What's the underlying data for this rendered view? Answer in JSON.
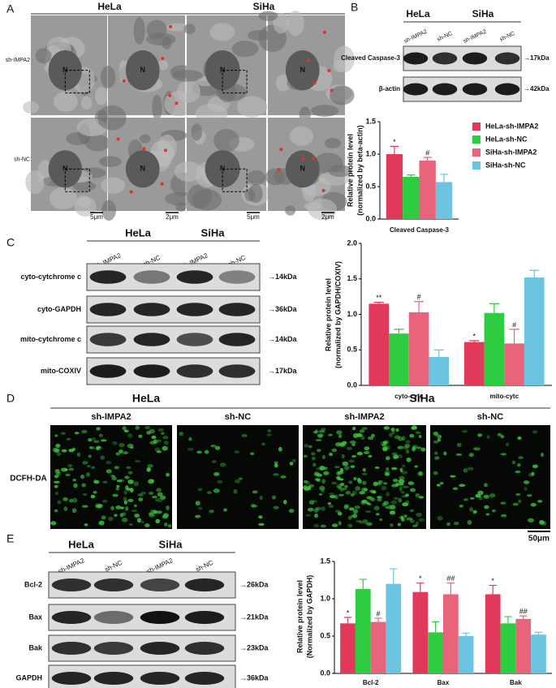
{
  "panels": {
    "a": {
      "label": "A",
      "groups": [
        "HeLa",
        "SiHa"
      ],
      "rows": [
        "sh-IMPA2",
        "sh-NC"
      ],
      "scale_bars": [
        "5μm",
        "2μm",
        "5μm",
        "2μm"
      ],
      "nucleus_mark": "N"
    },
    "b": {
      "label": "B",
      "groups": [
        "HeLa",
        "SiHa"
      ],
      "lanes": [
        "sh-IMPA2",
        "sh-NC",
        "sh-IMPA2",
        "sh-NC"
      ],
      "blots": [
        {
          "name": "Cleaved Caspase-3",
          "size": "→17kDa"
        },
        {
          "name": "β-actin",
          "size": "→42kDa"
        }
      ]
    },
    "c": {
      "label": "C",
      "groups": [
        "HeLa",
        "SiHa"
      ],
      "lanes": [
        "sh-IMPA2",
        "sh-NC",
        "sh-IMPA2",
        "sh-NC"
      ],
      "blots": [
        {
          "name": "cyto-cytchrome c",
          "size": "→14kDa"
        },
        {
          "name": "cyto-GAPDH",
          "size": "→36kDa"
        },
        {
          "name": "mito-cytchrome c",
          "size": "→14kDa"
        },
        {
          "name": "mito-COXIV",
          "size": "→17kDa"
        }
      ]
    },
    "d": {
      "label": "D",
      "groups": [
        "HeLa",
        "SiHa"
      ],
      "columns": [
        "sh-IMPA2",
        "sh-NC",
        "sh-IMPA2",
        "sh-NC"
      ],
      "row": "DCFH-DA",
      "scale_bar": "50μm"
    },
    "e": {
      "label": "E",
      "groups": [
        "HeLa",
        "SiHa"
      ],
      "lanes": [
        "sh-IMPA2",
        "sh-NC",
        "sh-IMPA2",
        "sh-NC"
      ],
      "blots": [
        {
          "name": "Bcl-2",
          "size": "→26kDa"
        },
        {
          "name": "Bax",
          "size": "→21kDa"
        },
        {
          "name": "Bak",
          "size": "→23kDa"
        },
        {
          "name": "GAPDH",
          "size": "→36kDa"
        }
      ]
    }
  },
  "chart_data": [
    {
      "type": "bar",
      "ylabel": [
        "Relative protein level",
        "(normalized by beta-actin)"
      ],
      "categories": [
        "Cleaved Caspase-3"
      ],
      "legend": true,
      "ylim": [
        0,
        1.5
      ],
      "yticks": [
        {
          "value": 0,
          "label": "0.0"
        },
        {
          "value": 0.5,
          "label": "0.5"
        },
        {
          "value": 1,
          "label": "1.0"
        },
        {
          "value": 1.5,
          "label": "1.5"
        }
      ],
      "series": [
        {
          "name": "HeLa-sh-IMPA2",
          "color": "#e0395a",
          "values": [
            1.0
          ],
          "error": [
            0.12
          ],
          "annotations": [
            "*"
          ]
        },
        {
          "name": "HeLa-sh-NC",
          "color": "#2ecc40",
          "values": [
            0.65
          ],
          "error": [
            0.03
          ],
          "annotations": [
            null
          ]
        },
        {
          "name": "SiHa-sh-IMPA2",
          "color": "#e8647a",
          "values": [
            0.9
          ],
          "error": [
            0.05
          ],
          "annotations": [
            "#"
          ]
        },
        {
          "name": "SiHa-sh-NC",
          "color": "#6cc5e0",
          "values": [
            0.57
          ],
          "error": [
            0.12
          ],
          "annotations": [
            null
          ]
        }
      ]
    },
    {
      "type": "bar",
      "ylabel": [
        "Relative protein level",
        "(normalized by GAPDH/COXIV)"
      ],
      "categories": [
        "cyto-cytc",
        "mito-cytc"
      ],
      "legend": false,
      "ylim": [
        0,
        2
      ],
      "yticks": [
        {
          "value": 0,
          "label": "0.0"
        },
        {
          "value": 0.5,
          "label": "0.5"
        },
        {
          "value": 1,
          "label": "1.0"
        },
        {
          "value": 1.5,
          "label": "1.5"
        },
        {
          "value": 2,
          "label": "2.0"
        }
      ],
      "series": [
        {
          "color": "#e0395a",
          "values": [
            1.15,
            0.61
          ],
          "error": [
            0.02,
            0.02
          ],
          "annotations": [
            "**",
            "*"
          ]
        },
        {
          "color": "#2ecc40",
          "values": [
            0.73,
            1.02
          ],
          "error": [
            0.06,
            0.13
          ],
          "annotations": [
            null,
            null
          ]
        },
        {
          "color": "#e8647a",
          "values": [
            1.03,
            0.59
          ],
          "error": [
            0.15,
            0.2
          ],
          "annotations": [
            "#",
            "#"
          ]
        },
        {
          "color": "#6cc5e0",
          "values": [
            0.4,
            1.52
          ],
          "error": [
            0.1,
            0.1
          ],
          "annotations": [
            null,
            null
          ]
        }
      ]
    },
    {
      "type": "bar",
      "ylabel": [
        "Relative protein level",
        "(Normalized by GAPDH)"
      ],
      "categories": [
        "Bcl-2",
        "Bax",
        "Bak"
      ],
      "legend": false,
      "ylim": [
        0,
        1.5
      ],
      "yticks": [
        {
          "value": 0,
          "label": "0.0"
        },
        {
          "value": 0.5,
          "label": "0.5"
        },
        {
          "value": 1,
          "label": "1.0"
        },
        {
          "value": 1.5,
          "label": "1.5"
        }
      ],
      "series": [
        {
          "color": "#e0395a",
          "values": [
            0.67,
            1.09,
            1.06
          ],
          "error": [
            0.08,
            0.12,
            0.12
          ],
          "annotations": [
            "*",
            "*",
            "*"
          ]
        },
        {
          "color": "#2ecc40",
          "values": [
            1.13,
            0.55,
            0.67
          ],
          "error": [
            0.13,
            0.14,
            0.09
          ],
          "annotations": [
            null,
            null,
            null
          ]
        },
        {
          "color": "#e8647a",
          "values": [
            0.69,
            1.06,
            0.73
          ],
          "error": [
            0.05,
            0.15,
            0.04
          ],
          "annotations": [
            "#",
            "##",
            "##"
          ]
        },
        {
          "color": "#6cc5e0",
          "values": [
            1.2,
            0.5,
            0.52
          ],
          "error": [
            0.2,
            0.04,
            0.03
          ],
          "annotations": [
            null,
            null,
            null
          ]
        }
      ]
    }
  ]
}
